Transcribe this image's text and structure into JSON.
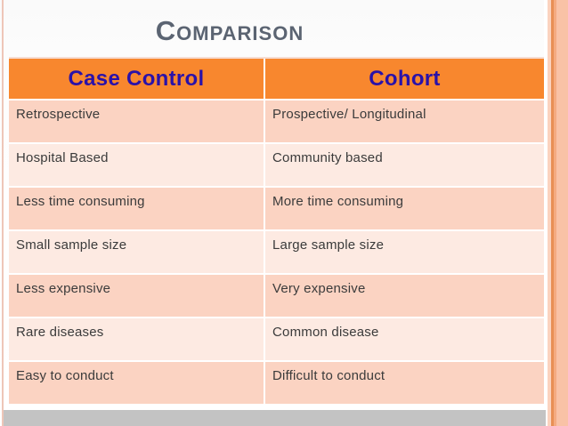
{
  "slide": {
    "title": "Comparison",
    "colors": {
      "header_bg": "#f8872e",
      "header_text": "#2a12a9",
      "row_dark": "#fbd3c2",
      "row_light": "#fdeae2",
      "title_text": "#5b6472",
      "bottom_bar": "#c3c3c3",
      "accent_band": "#f9c2a6",
      "left_accent": "#eec6b8"
    }
  },
  "table": {
    "headers": [
      "Case Control",
      "Cohort"
    ],
    "rows": [
      {
        "case_control": "Retrospective",
        "cohort": "Prospective/ Longitudinal"
      },
      {
        "case_control": "Hospital Based",
        "cohort": "Community based"
      },
      {
        "case_control": "Less time consuming",
        "cohort": "More time consuming"
      },
      {
        "case_control": "Small sample size",
        "cohort": "Large sample size"
      },
      {
        "case_control": "Less expensive",
        "cohort": "Very expensive"
      },
      {
        "case_control": "Rare diseases",
        "cohort": "Common disease"
      },
      {
        "case_control": "Easy to conduct",
        "cohort": "Difficult to conduct"
      }
    ]
  }
}
